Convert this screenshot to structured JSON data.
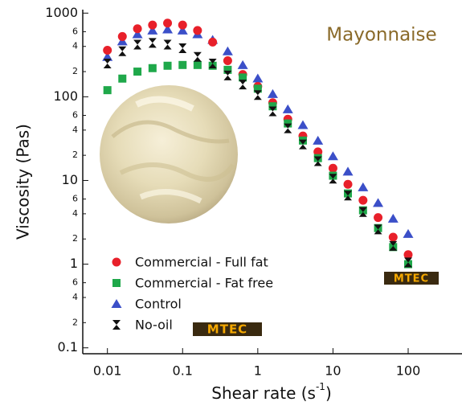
{
  "chart_data": {
    "type": "scatter",
    "annotation": "Mayonnaise",
    "logos": [
      "MTEC",
      "MTEC"
    ],
    "ylabel": "Viscosity (Pas)",
    "xlabel": {
      "text": "Shear rate (s",
      "sup": "-1",
      "end": ")"
    },
    "xlog": true,
    "ylog": true,
    "xlim": [
      0.0047,
      520
    ],
    "ylim": [
      0.085,
      1100
    ],
    "xticks": [
      0.01,
      0.1,
      1,
      10,
      100
    ],
    "yticks": [
      0.1,
      {
        "value": 0.2,
        "label": "2"
      },
      {
        "value": 0.4,
        "label": "4"
      },
      {
        "value": 0.6,
        "label": "6"
      },
      1,
      {
        "value": 2,
        "label": "2"
      },
      {
        "value": 4,
        "label": "4"
      },
      {
        "value": 6,
        "label": "6"
      },
      10,
      {
        "value": 20,
        "label": "2"
      },
      {
        "value": 40,
        "label": "4"
      },
      {
        "value": 60,
        "label": "6"
      },
      100,
      {
        "value": 200,
        "label": "2"
      },
      {
        "value": 400,
        "label": "4"
      },
      {
        "value": 600,
        "label": "6"
      },
      1000
    ],
    "legend": "bottom-left",
    "x": [
      0.01,
      0.0158,
      0.0251,
      0.0398,
      0.0631,
      0.1,
      0.158,
      0.251,
      0.398,
      0.631,
      1,
      1.58,
      2.51,
      3.98,
      6.31,
      10,
      15.8,
      25.1,
      39.8,
      63.1,
      100
    ],
    "series": [
      {
        "name": "Control",
        "color": "#3b4fc8",
        "marker": "triangle",
        "values": [
          300,
          460,
          560,
          620,
          640,
          620,
          560,
          480,
          350,
          240,
          166,
          108,
          71,
          46,
          30,
          19.5,
          12.8,
          8.3,
          5.4,
          3.5,
          2.3
        ]
      },
      {
        "name": "Commercial - Full fat",
        "color": "#e8202a",
        "marker": "circle",
        "values": [
          360,
          525,
          650,
          720,
          760,
          720,
          620,
          450,
          270,
          185,
          133,
          85,
          54,
          34,
          22,
          14,
          9,
          5.8,
          3.6,
          2.1,
          1.3
        ]
      },
      {
        "name": "Commercial - Fat free",
        "color": "#1fa84a",
        "marker": "square",
        "values": [
          120,
          165,
          200,
          220,
          235,
          240,
          240,
          235,
          210,
          170,
          125,
          77,
          48,
          30,
          18.5,
          11.4,
          7,
          4.4,
          2.7,
          1.6,
          1.0
        ]
      },
      {
        "name": "No-oil",
        "color": "#111111",
        "marker": "hourglass",
        "values": [
          250,
          350,
          420,
          440,
          420,
          380,
          300,
          250,
          180,
          140,
          105,
          67,
          42,
          27,
          17,
          10.5,
          6.6,
          4.2,
          2.6,
          1.65,
          1.05
        ]
      }
    ],
    "legend_order": [
      1,
      2,
      0,
      3
    ]
  }
}
